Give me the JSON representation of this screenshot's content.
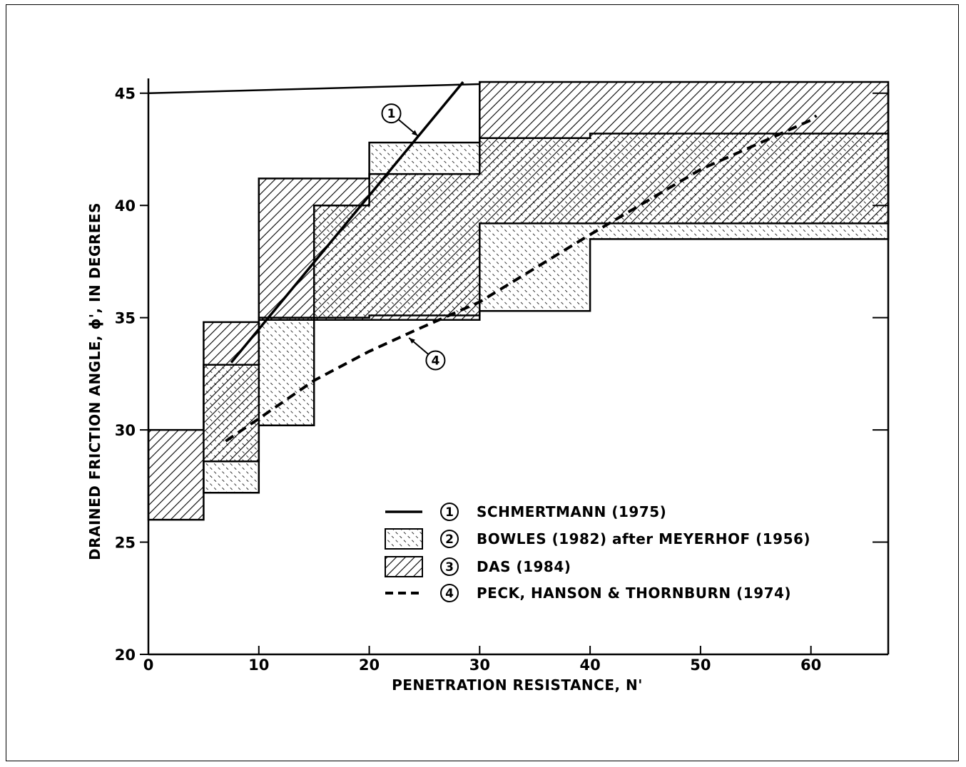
{
  "colors": {
    "ink": "#000000",
    "paper": "#ffffff"
  },
  "chart_data": {
    "type": "area",
    "xlabel": "PENETRATION RESISTANCE, N'",
    "ylabel": "DRAINED FRICTION ANGLE, ϕ', IN DEGREES",
    "xlim": [
      0,
      67
    ],
    "ylim": [
      20,
      45.5
    ],
    "x_ticks": [
      0,
      10,
      20,
      30,
      40,
      50,
      60
    ],
    "y_ticks": [
      20,
      25,
      30,
      35,
      40,
      45
    ],
    "grid": false,
    "legend_position": "lower-right",
    "series": [
      {
        "id": "1",
        "name": "SCHMERTMANN (1975)",
        "style": "solid-line",
        "x": [
          7.5,
          28.5
        ],
        "y": [
          33,
          45.5
        ]
      },
      {
        "id": "2",
        "name": "BOWLES (1982) after MEYERHOF (1956)",
        "style": "cross-hatch band",
        "x": [
          5,
          10,
          15,
          20,
          30,
          40,
          67
        ],
        "lower": [
          27.2,
          30.2,
          35,
          35.1,
          35.3,
          38.5,
          38.8
        ],
        "upper": [
          32.9,
          35,
          40,
          42.8,
          43,
          43.2,
          43.3
        ]
      },
      {
        "id": "3",
        "name": "DAS (1984)",
        "style": "diagonal-hatch band",
        "x": [
          0,
          5,
          10,
          20,
          30,
          67
        ],
        "lower": [
          26,
          28.6,
          34.9,
          34.9,
          39.2,
          39.7
        ],
        "upper": [
          30,
          34.8,
          41.2,
          41.4,
          45.5,
          45.5
        ]
      },
      {
        "id": "4",
        "name": "PECK, HANSON & THORNBURN (1974)",
        "style": "dashed-line",
        "x": [
          7,
          10,
          15,
          20,
          24,
          30,
          40,
          50,
          60,
          60.5
        ],
        "y": [
          29.5,
          30.5,
          32.2,
          33.5,
          34.4,
          35.7,
          38.7,
          41.6,
          43.8,
          44
        ]
      }
    ],
    "annotations": [
      {
        "label": "1",
        "x": 22,
        "y": 44.1,
        "target_x": 24.4,
        "target_y": 43.1
      },
      {
        "label": "4",
        "x": 26,
        "y": 33.1,
        "target_x": 23.6,
        "target_y": 34.1
      }
    ]
  }
}
